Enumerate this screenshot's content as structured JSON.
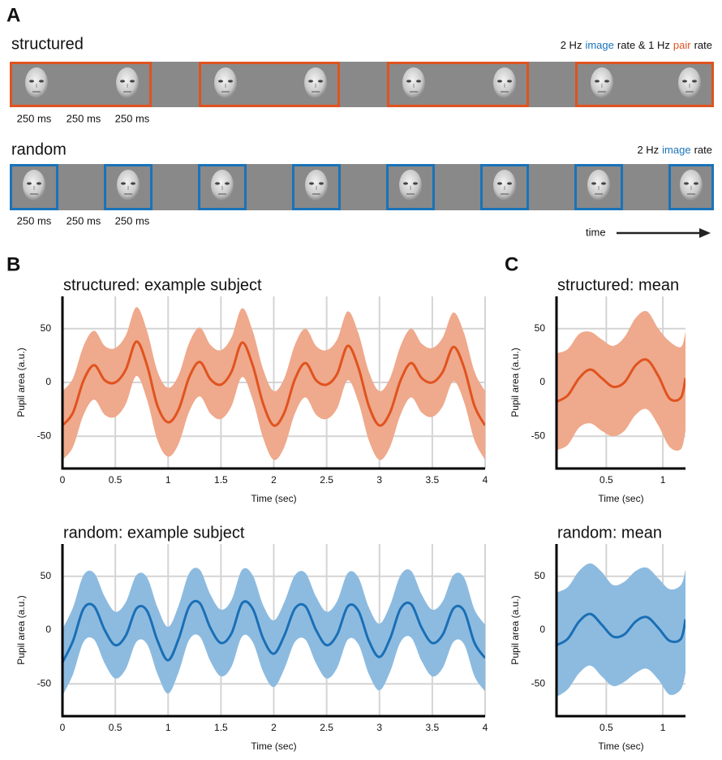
{
  "panel_a": {
    "label": "A",
    "structured": {
      "title": "structured",
      "rate_text": [
        "2 Hz",
        "image",
        "rate & 1 Hz",
        "pair",
        "rate"
      ],
      "durations": [
        "250 ms",
        "250 ms",
        "250 ms"
      ]
    },
    "random": {
      "title": "random",
      "rate_text": [
        "2 Hz",
        "image",
        "rate"
      ],
      "durations": [
        "250 ms",
        "250 ms",
        "250 ms"
      ]
    },
    "time_label": "time"
  },
  "panel_b_label": "B",
  "panel_c_label": "C",
  "chart_data": [
    {
      "type": "line",
      "title": "structured: example subject",
      "xlabel": "Time (sec)",
      "ylabel": "Pupil area (a.u.)",
      "x": [
        0,
        0.1,
        0.2,
        0.3,
        0.4,
        0.5,
        0.6,
        0.7,
        0.8,
        0.9,
        1,
        1.1,
        1.2,
        1.3,
        1.4,
        1.5,
        1.6,
        1.7,
        1.8,
        1.9,
        2,
        2.1,
        2.2,
        2.3,
        2.4,
        2.5,
        2.6,
        2.7,
        2.8,
        2.9,
        3,
        3.1,
        3.2,
        3.3,
        3.4,
        3.5,
        3.6,
        3.7,
        3.8,
        3.9,
        4
      ],
      "values": [
        -40,
        -28,
        2,
        16,
        2,
        0,
        12,
        38,
        16,
        -22,
        -37,
        -25,
        5,
        19,
        3,
        -2,
        10,
        37,
        16,
        -20,
        -40,
        -28,
        3,
        18,
        2,
        -2,
        8,
        34,
        14,
        -22,
        -40,
        -28,
        2,
        18,
        4,
        0,
        10,
        33,
        14,
        -22,
        -40
      ],
      "upper": [
        -8,
        4,
        34,
        48,
        34,
        32,
        44,
        70,
        48,
        10,
        -5,
        7,
        37,
        51,
        35,
        30,
        42,
        69,
        48,
        12,
        -8,
        4,
        35,
        50,
        34,
        30,
        40,
        66,
        46,
        10,
        -8,
        4,
        34,
        50,
        36,
        32,
        42,
        65,
        46,
        10,
        -8
      ],
      "lower": [
        -72,
        -60,
        -30,
        -16,
        -30,
        -32,
        -20,
        6,
        -16,
        -54,
        -69,
        -57,
        -27,
        -13,
        -29,
        -34,
        -22,
        5,
        -16,
        -52,
        -72,
        -60,
        -29,
        -14,
        -30,
        -34,
        -24,
        2,
        -18,
        -54,
        -72,
        -60,
        -30,
        -14,
        -28,
        -32,
        -22,
        1,
        -18,
        -54,
        -72
      ],
      "color": "#e0531f",
      "band_color": "#efa98c",
      "xlim": [
        0,
        4
      ],
      "ylim": [
        -80,
        80
      ],
      "xticks": [
        0,
        0.5,
        1,
        1.5,
        2,
        2.5,
        3,
        3.5,
        4
      ],
      "yticks": [
        -50,
        0,
        50
      ],
      "grid": true
    },
    {
      "type": "line",
      "title": "random: example subject",
      "xlabel": "Time (sec)",
      "ylabel": "Pupil area (a.u.)",
      "x": [
        0,
        0.1,
        0.2,
        0.3,
        0.4,
        0.5,
        0.6,
        0.7,
        0.8,
        0.9,
        1,
        1.1,
        1.2,
        1.3,
        1.4,
        1.5,
        1.6,
        1.7,
        1.8,
        1.9,
        2,
        2.1,
        2.2,
        2.3,
        2.4,
        2.5,
        2.6,
        2.7,
        2.8,
        2.9,
        3,
        3.1,
        3.2,
        3.3,
        3.4,
        3.5,
        3.6,
        3.7,
        3.8,
        3.9,
        4
      ],
      "values": [
        -30,
        -10,
        20,
        22,
        0,
        -14,
        -5,
        20,
        18,
        -10,
        -28,
        -8,
        22,
        25,
        2,
        -12,
        -3,
        25,
        20,
        -8,
        -22,
        -5,
        20,
        22,
        0,
        -14,
        -4,
        22,
        18,
        -10,
        -25,
        -8,
        20,
        24,
        2,
        -12,
        -4,
        20,
        18,
        -12,
        -26
      ],
      "upper": [
        1,
        21,
        51,
        53,
        31,
        17,
        26,
        51,
        49,
        21,
        3,
        23,
        53,
        56,
        33,
        19,
        28,
        56,
        51,
        23,
        9,
        26,
        51,
        53,
        31,
        17,
        27,
        53,
        49,
        21,
        6,
        23,
        51,
        55,
        33,
        19,
        27,
        51,
        49,
        19,
        5
      ],
      "lower": [
        -61,
        -41,
        -11,
        -9,
        -31,
        -45,
        -36,
        -11,
        -13,
        -41,
        -59,
        -39,
        -9,
        -6,
        -29,
        -43,
        -34,
        -6,
        -11,
        -39,
        -53,
        -36,
        -11,
        -9,
        -31,
        -45,
        -35,
        -9,
        -13,
        -41,
        -56,
        -39,
        -11,
        -7,
        -29,
        -43,
        -35,
        -11,
        -13,
        -43,
        -57
      ],
      "color": "#1a6fb5",
      "band_color": "#8dbbe0",
      "xlim": [
        0,
        4
      ],
      "ylim": [
        -80,
        80
      ],
      "xticks": [
        0,
        0.5,
        1,
        1.5,
        2,
        2.5,
        3,
        3.5,
        4
      ],
      "yticks": [
        -50,
        0,
        50
      ],
      "grid": true
    },
    {
      "type": "line",
      "title": "structured: mean",
      "xlabel": "Time (sec)",
      "ylabel": "Pupil area (a.u.)",
      "x": [
        0.06,
        0.16,
        0.26,
        0.36,
        0.46,
        0.56,
        0.66,
        0.76,
        0.86,
        0.96,
        1.06,
        1.16,
        1.2
      ],
      "values": [
        -18,
        -12,
        4,
        12,
        4,
        -4,
        0,
        16,
        21,
        6,
        -15,
        -14,
        4
      ],
      "upper": [
        27,
        31,
        45,
        47,
        40,
        34,
        42,
        60,
        66,
        50,
        38,
        33,
        47
      ],
      "lower": [
        -63,
        -58,
        -42,
        -38,
        -45,
        -50,
        -45,
        -30,
        -25,
        -40,
        -60,
        -62,
        -45
      ],
      "color": "#e0531f",
      "band_color": "#efa98c",
      "xlim": [
        0.06,
        1.2
      ],
      "ylim": [
        -80,
        80
      ],
      "xticks": [
        0.5,
        1
      ],
      "yticks": [
        -50,
        0,
        50
      ],
      "grid": true
    },
    {
      "type": "line",
      "title": "random: mean",
      "xlabel": "Time (sec)",
      "ylabel": "Pupil area (a.u.)",
      "x": [
        0.06,
        0.16,
        0.26,
        0.36,
        0.46,
        0.56,
        0.66,
        0.76,
        0.86,
        0.96,
        1.06,
        1.16,
        1.2
      ],
      "values": [
        -14,
        -8,
        8,
        15,
        5,
        -6,
        -4,
        8,
        12,
        2,
        -10,
        -8,
        10
      ],
      "upper": [
        35,
        40,
        55,
        62,
        54,
        42,
        45,
        55,
        58,
        48,
        38,
        42,
        56
      ],
      "lower": [
        -62,
        -55,
        -40,
        -33,
        -43,
        -52,
        -48,
        -40,
        -36,
        -46,
        -60,
        -55,
        -40
      ],
      "color": "#1a6fb5",
      "band_color": "#8dbbe0",
      "xlim": [
        0.06,
        1.2
      ],
      "ylim": [
        -80,
        80
      ],
      "xticks": [
        0.5,
        1
      ],
      "yticks": [
        -50,
        0,
        50
      ],
      "grid": true
    }
  ]
}
